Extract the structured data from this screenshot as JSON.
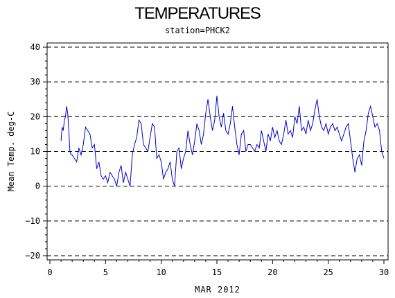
{
  "chart_data": {
    "type": "line",
    "title": "TEMPERATURES",
    "subtitle": "station=PHCK2",
    "xlabel": "MAR 2012",
    "ylabel": "Mean Temp. deg-C",
    "xlim": [
      0,
      30
    ],
    "ylim": [
      -21,
      41
    ],
    "xticks": [
      0,
      5,
      10,
      15,
      20,
      25,
      30
    ],
    "yticks": [
      -20,
      -10,
      0,
      10,
      20,
      30,
      40
    ],
    "ytick_labels": [
      "−20",
      "−10",
      "0",
      "10",
      "20",
      "30",
      "40"
    ],
    "grid": "dashed horizontal at y ticks",
    "line_color": "#0000cc",
    "series": [
      {
        "x": [
          1.0,
          1.1,
          1.2,
          1.3,
          1.4,
          1.5,
          1.6,
          1.7,
          1.8,
          1.9,
          2.0,
          2.2,
          2.4,
          2.6,
          2.8,
          3.0,
          3.2,
          3.4,
          3.6,
          3.8,
          4.0,
          4.2,
          4.4,
          4.6,
          4.8,
          5.0,
          5.2,
          5.4,
          5.6,
          5.8,
          6.0,
          6.2,
          6.4,
          6.6,
          6.8,
          7.0,
          7.2,
          7.4,
          7.6,
          7.8,
          8.0,
          8.2,
          8.4,
          8.6,
          8.8,
          9.0,
          9.2,
          9.4,
          9.6,
          9.8,
          10.0,
          10.2,
          10.4,
          10.6,
          10.8,
          11.0,
          11.2,
          11.4,
          11.6,
          11.8,
          12.0,
          12.2,
          12.4,
          12.6,
          12.8,
          13.0,
          13.2,
          13.4,
          13.6,
          13.8,
          14.0,
          14.2,
          14.4,
          14.6,
          14.8,
          15.0,
          15.2,
          15.4,
          15.6,
          15.8,
          16.0,
          16.2,
          16.4,
          16.6,
          16.8,
          17.0,
          17.2,
          17.4,
          17.6,
          17.8,
          18.0,
          18.2,
          18.4,
          18.6,
          18.8,
          19.0,
          19.2,
          19.4,
          19.6,
          19.8,
          20.0,
          20.2,
          20.4,
          20.6,
          20.8,
          21.0,
          21.2,
          21.4,
          21.6,
          21.8,
          22.0,
          22.2,
          22.4,
          22.6,
          22.8,
          23.0,
          23.2,
          23.4,
          23.6,
          23.8,
          24.0,
          24.2,
          24.4,
          24.6,
          24.8,
          25.0,
          25.2,
          25.4,
          25.6,
          25.8,
          26.0,
          26.2,
          26.4,
          26.6,
          26.8,
          27.0,
          27.2,
          27.4,
          27.6,
          27.8,
          28.0,
          28.2,
          28.4,
          28.6,
          28.8,
          29.0,
          29.2,
          29.4,
          29.6,
          29.8,
          30.0
        ],
        "y": [
          13,
          17,
          16,
          19,
          20,
          23,
          21,
          16,
          10,
          9,
          9,
          8,
          7,
          11,
          9,
          12,
          17,
          16,
          15,
          11,
          12,
          5,
          7,
          3,
          2,
          3,
          1,
          4,
          3,
          2,
          0,
          4,
          6,
          1,
          4,
          2,
          0,
          9,
          12,
          14,
          19,
          18,
          12,
          11,
          10,
          14,
          18,
          17,
          8,
          9,
          7,
          2,
          4,
          5,
          7,
          2,
          0,
          10,
          11,
          5,
          8,
          10,
          16,
          12,
          9,
          13,
          18,
          16,
          12,
          15,
          21,
          25,
          20,
          16,
          19,
          26,
          20,
          17,
          21,
          16,
          15,
          18,
          23,
          17,
          12,
          9,
          15,
          16,
          10,
          12,
          12,
          11,
          10,
          12,
          11,
          16,
          13,
          10,
          15,
          13,
          17,
          14,
          16,
          13,
          12,
          15,
          19,
          15,
          16,
          14,
          20,
          18,
          23,
          16,
          17,
          15,
          19,
          16,
          18,
          22,
          25,
          20,
          17,
          16,
          18,
          15,
          17,
          18,
          16,
          17,
          15,
          13,
          15,
          17,
          18,
          13,
          8,
          4,
          8,
          9,
          6,
          13,
          16,
          21,
          23,
          20,
          17,
          18,
          16,
          10,
          8
        ]
      }
    ]
  }
}
